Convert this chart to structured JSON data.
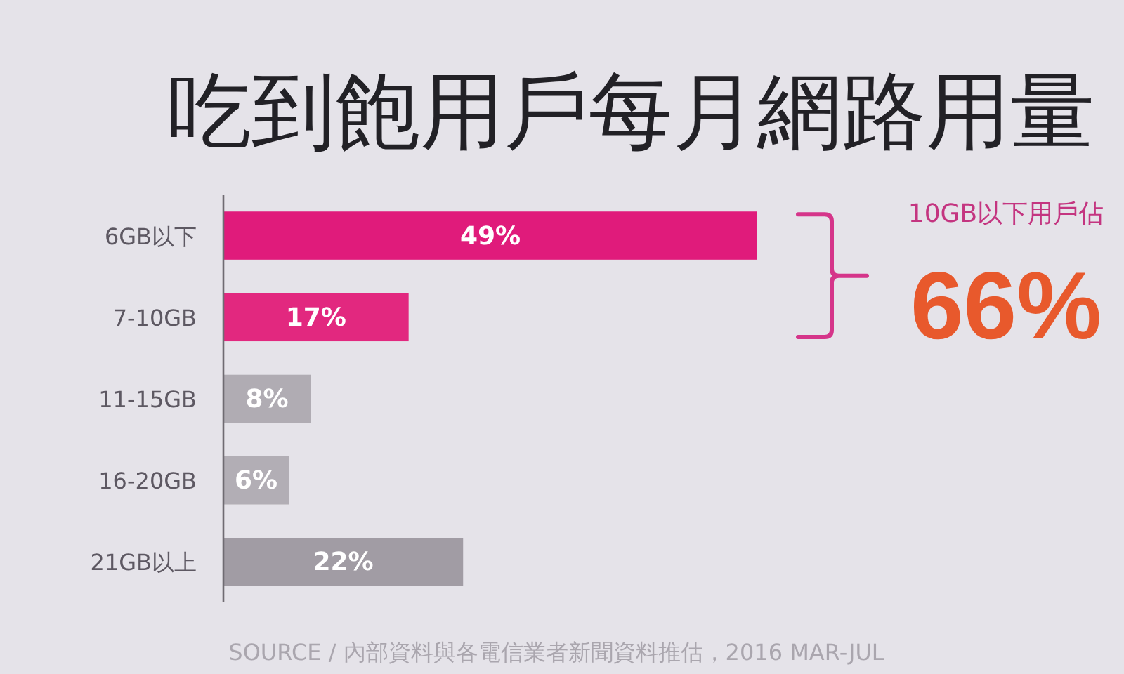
{
  "chart_data": {
    "type": "bar",
    "orientation": "horizontal",
    "title": "吃到飽用戶每月網路用量",
    "categories": [
      "6GB以下",
      "7-10GB",
      "11-15GB",
      "16-20GB",
      "21GB以上"
    ],
    "values": [
      49,
      17,
      8,
      6,
      22
    ],
    "colors": [
      "#e01b7b",
      "#e2287f",
      "#b0acb3",
      "#b2aeb5",
      "#a19ca4"
    ],
    "value_labels": [
      "49%",
      "17%",
      "8%",
      "6%",
      "22%"
    ],
    "tick_labels": "y",
    "annotations": [
      "10GB以下用戶佔",
      "66%",
      "SOURCE / 內部資料與各電信業者新聞資料推估，2016 MAR-JUL"
    ]
  }
}
